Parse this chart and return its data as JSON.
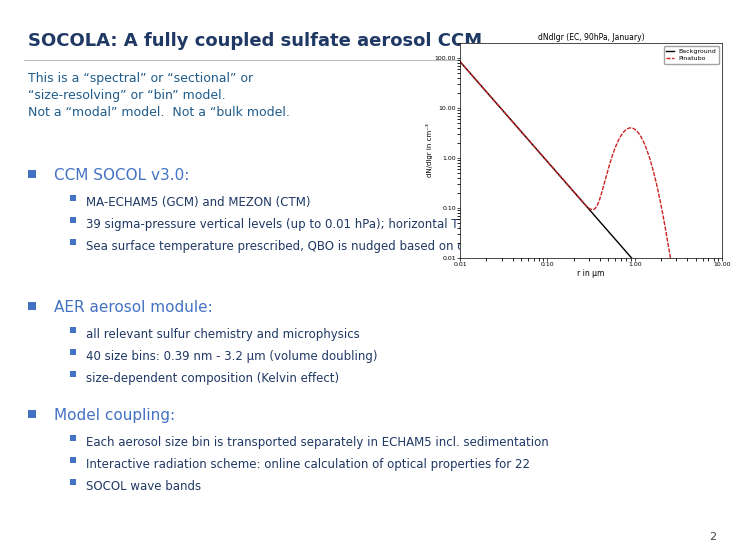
{
  "title": "SOCOLA: A fully coupled sulfate aerosol CCM",
  "title_color": "#1F3864",
  "title_fontsize": 13,
  "bg_color": "#FFFFFF",
  "intro_line1": "This is a “spectral” or “sectional” or",
  "intro_line2": "“size-resolving” or “bin” model.",
  "intro_line3": "Not a “modal” model.  Not a “bulk model.",
  "intro_color": "#1F5C8B",
  "intro_fontsize": 9,
  "bullet_square_color": "#4472C4",
  "sub_bullet_square_color": "#4472C4",
  "section_fontsize": 11,
  "sub_fontsize": 8.5,
  "text_color": "#1F3864",
  "sections": [
    {
      "header": "CCM SOCOL v3.0:",
      "header_color": "#4472C4",
      "items": [
        "MA-ECHAM5 (GCM) and MEZON (CTM)",
        "39 sigma-pressure vertical levels (up to 0.01 hPa); horizontal T31 or T42",
        "Sea surface temperature prescribed, QBO is nudged based on observations"
      ]
    },
    {
      "header": "AER aerosol module:",
      "header_color": "#4472C4",
      "items": [
        "all relevant sulfur chemistry and microphysics",
        "40 size bins: 0.39 nm - 3.2 μm (volume doubling)",
        "size-dependent composition (Kelvin effect)"
      ]
    },
    {
      "header": "Model coupling:",
      "header_color": "#4472C4",
      "items": [
        "Each aerosol size bin is transported separately in ECHAM5 incl. sedimentation",
        "Interactive radiation scheme: online calculation of optical properties for 22\nSOCOL wave bands"
      ]
    }
  ],
  "page_number": "2",
  "chart_title": "dNdlgr (EC, 90hPa, January)",
  "chart_xlabel": "r in μm",
  "chart_ylabel": "dN/dlgr in cm⁻³",
  "chart_bg": "#FFFFFF",
  "line_bg_color": "#000000",
  "line_pina_color": "#CC2222",
  "legend_bg": "Background",
  "legend_pina": "Pinatubo"
}
